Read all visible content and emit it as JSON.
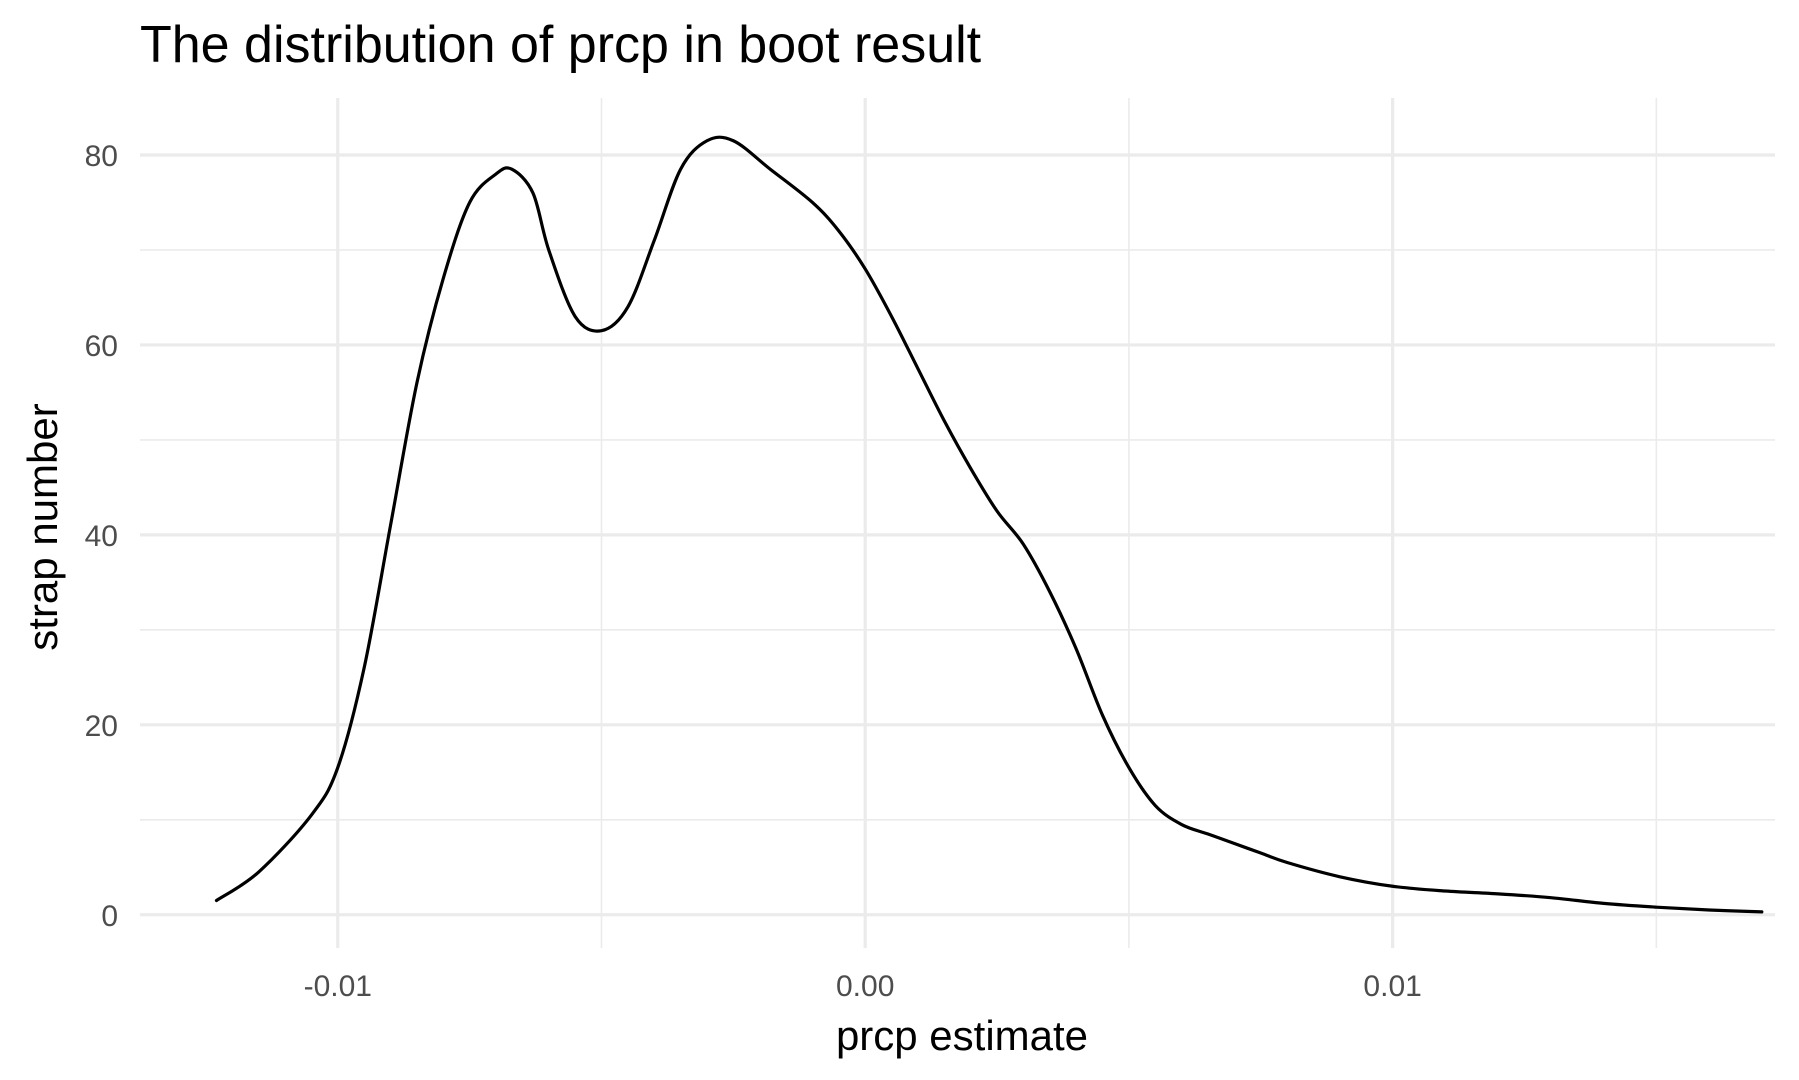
{
  "chart_data": {
    "type": "line",
    "title": "The distribution of prcp in boot result",
    "xlabel": "prcp estimate",
    "ylabel": "strap number",
    "xlim": [
      -0.01375,
      0.01725
    ],
    "ylim": [
      -3.5,
      86
    ],
    "x_ticks": [
      -0.01,
      0.0,
      0.01
    ],
    "x_tick_labels": [
      "-0.01",
      "0.00",
      "0.01"
    ],
    "y_ticks": [
      0,
      20,
      40,
      60,
      80
    ],
    "y_tick_labels": [
      "0",
      "20",
      "40",
      "60",
      "80"
    ],
    "grid": true,
    "legend": "none",
    "line_color": "#000000",
    "series": [
      {
        "x": [
          -0.0123,
          -0.0115,
          -0.0105,
          -0.01,
          -0.0095,
          -0.009,
          -0.0085,
          -0.008,
          -0.0075,
          -0.007,
          -0.0067,
          -0.0063,
          -0.006,
          -0.0055,
          -0.005,
          -0.0045,
          -0.004,
          -0.0035,
          -0.003,
          -0.0025,
          -0.0018,
          -0.001,
          -0.0005,
          0.0,
          0.0005,
          0.001,
          0.0015,
          0.002,
          0.0025,
          0.003,
          0.0035,
          0.004,
          0.0045,
          0.005,
          0.0055,
          0.006,
          0.0065,
          0.007,
          0.0075,
          0.008,
          0.009,
          0.01,
          0.011,
          0.012,
          0.013,
          0.014,
          0.015,
          0.016,
          0.017
        ],
        "y": [
          1.5,
          4.5,
          10.5,
          15.5,
          26,
          41,
          56,
          67,
          75,
          78,
          78.5,
          76,
          70,
          63,
          61.5,
          64,
          71,
          78.5,
          81.5,
          81.5,
          78.5,
          75,
          72,
          68,
          63,
          57.5,
          52,
          47,
          42.5,
          39,
          34,
          28,
          21,
          15.5,
          11.5,
          9.5,
          8.5,
          7.5,
          6.5,
          5.5,
          4,
          3,
          2.5,
          2.2,
          1.8,
          1.2,
          0.8,
          0.5,
          0.3
        ]
      }
    ]
  }
}
